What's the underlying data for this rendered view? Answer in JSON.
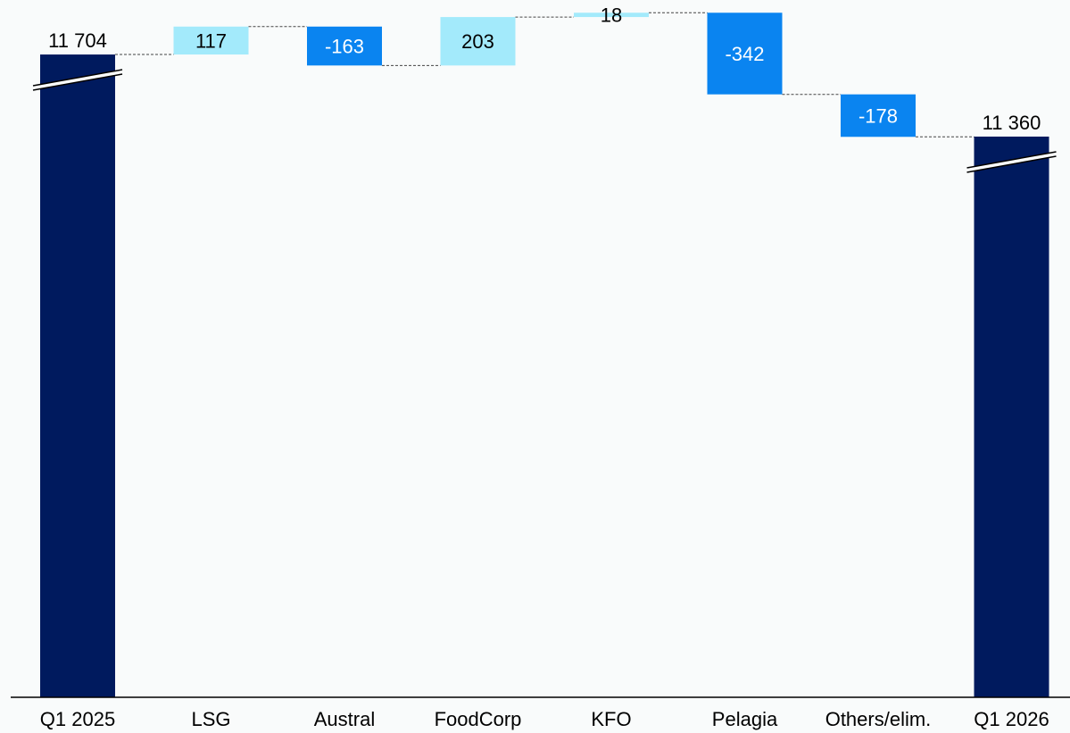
{
  "chart_data": {
    "type": "waterfall",
    "categories": [
      "Q1 2025",
      "LSG",
      "Austral",
      "FoodCorp",
      "KFO",
      "Pelagia",
      "Others/elim.",
      "Q1 2026"
    ],
    "series": [
      {
        "kinds": [
          "total",
          "delta",
          "delta",
          "delta",
          "delta",
          "delta",
          "delta",
          "total"
        ],
        "values": [
          11704,
          117,
          -163,
          203,
          18,
          -342,
          -178,
          11360
        ],
        "labels": [
          "11 704",
          "117",
          "-163",
          "203",
          "18",
          "-342",
          "-178",
          "11 360"
        ]
      }
    ],
    "axis_break": true,
    "axis_break_on": [
      "Q1 2025",
      "Q1 2026"
    ],
    "colors": {
      "total": "#001a5e",
      "increase": "#a3eafb",
      "decrease": "#0a84f0",
      "connector": "#444444",
      "background": "#f9fbfb",
      "axis": "#000000"
    }
  }
}
